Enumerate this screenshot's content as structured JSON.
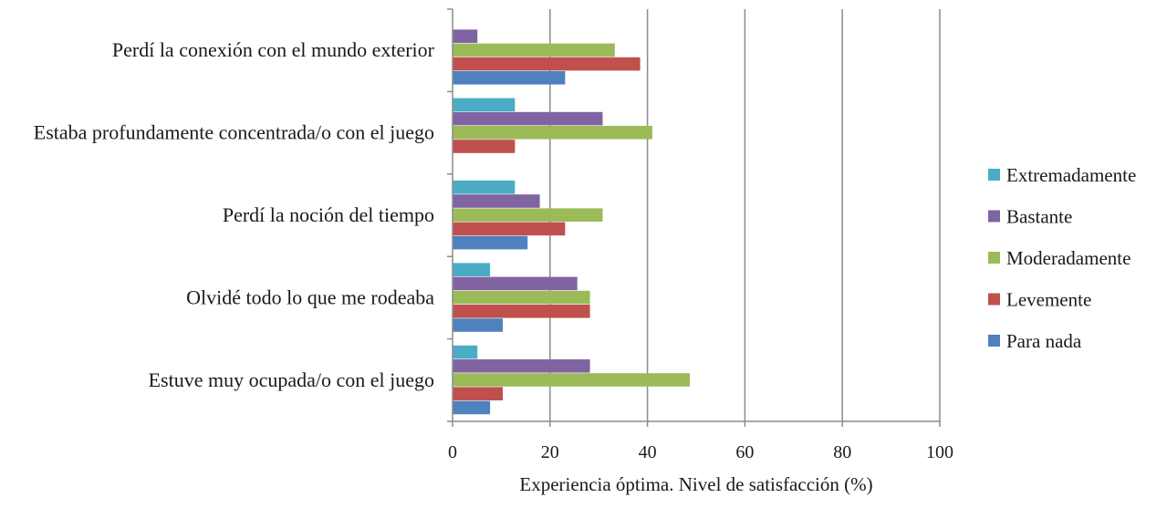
{
  "chart_data": {
    "type": "bar",
    "orientation": "horizontal",
    "title": "",
    "xlabel": "Experiencia óptima. Nivel de satisfacción (%)",
    "ylabel": "",
    "xlim": [
      0,
      100
    ],
    "xticks": [
      0,
      20,
      40,
      60,
      80,
      100
    ],
    "grid": true,
    "legend_position": "right",
    "categories": [
      "Perdí la conexión con el mundo exterior",
      "Estaba profundamente concentrada/o con el juego",
      "Perdí la noción del tiempo",
      "Olvidé todo lo que me rodeaba",
      "Estuve muy ocupada/o con el juego"
    ],
    "series": [
      {
        "name": "Extremadamente",
        "color": "#4bacc6",
        "values": [
          0,
          12.8,
          12.8,
          7.7,
          5.1
        ]
      },
      {
        "name": "Bastante",
        "color": "#8064a2",
        "values": [
          5.1,
          30.8,
          17.9,
          25.6,
          28.2
        ]
      },
      {
        "name": "Moderadamente",
        "color": "#9bbb59",
        "values": [
          33.3,
          41.0,
          30.8,
          28.2,
          48.7
        ]
      },
      {
        "name": "Levemente",
        "color": "#c0504d",
        "values": [
          38.5,
          12.8,
          23.1,
          28.2,
          10.3
        ]
      },
      {
        "name": "Para nada",
        "color": "#4f81bd",
        "values": [
          23.1,
          0,
          15.4,
          10.3,
          7.7
        ]
      }
    ]
  }
}
